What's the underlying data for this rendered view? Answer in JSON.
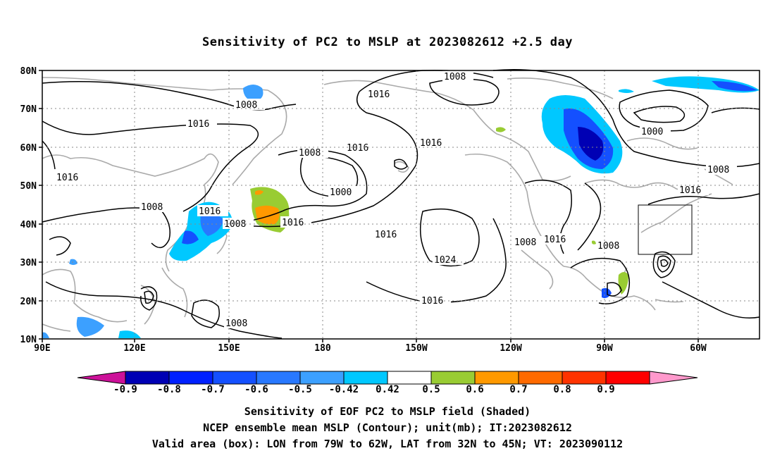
{
  "title": "Sensitivity of PC2 to MSLP at 2023082612 +2.5 day",
  "map": {
    "lat_labels": [
      "80N",
      "70N",
      "60N",
      "50N",
      "40N",
      "30N",
      "20N",
      "10N"
    ],
    "lon_labels": [
      "90E",
      "120E",
      "150E",
      "180",
      "150W",
      "120W",
      "90W",
      "60W"
    ],
    "contour_labels": [
      "1008",
      "1016",
      "1016",
      "1008",
      "1016",
      "1016",
      "1008",
      "1000",
      "1008",
      "1016",
      "1000",
      "1008",
      "1016",
      "1016",
      "1016",
      "1016",
      "1008",
      "1008",
      "1016",
      "1008",
      "1016",
      "1008",
      "1024",
      "1008",
      "1016",
      "1016",
      "1008"
    ]
  },
  "colorbar": {
    "labels": [
      "-0.9",
      "-0.8",
      "-0.7",
      "-0.6",
      "-0.5",
      "-0.42",
      "0.42",
      "0.5",
      "0.6",
      "0.7",
      "0.8",
      "0.9"
    ],
    "colors": [
      "#0000b4",
      "#0020ff",
      "#1450ff",
      "#2878ff",
      "#3ca0ff",
      "#00c8ff",
      "#ffffff",
      "#99cc33",
      "#ff9900",
      "#ff6a00",
      "#ff3300",
      "#ff0000"
    ],
    "low_color": "#cc1199",
    "high_color": "#ff99cc"
  },
  "captions": {
    "line1": "Sensitivity of EOF PC2 to MSLP field (Shaded)",
    "line2": "NCEP ensemble mean MSLP (Contour); unit(mb); IT:2023082612",
    "line3": "Valid area (box): LON from 79W to 62W, LAT from 32N to 45N; VT: 2023090112"
  }
}
